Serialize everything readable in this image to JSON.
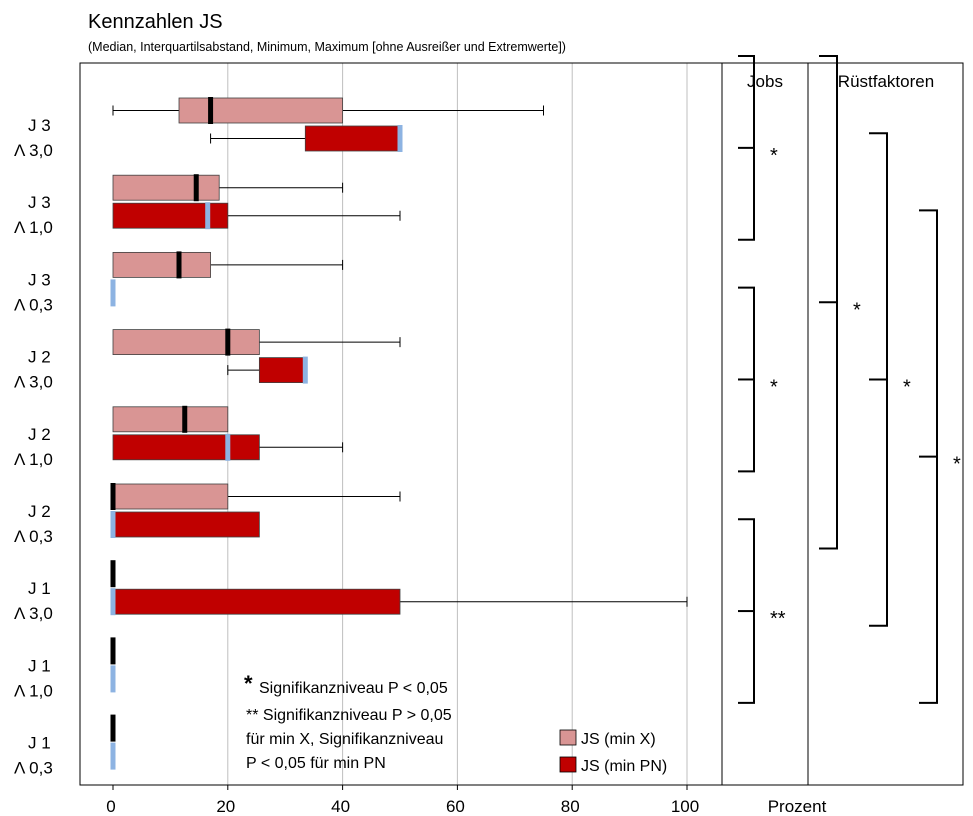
{
  "chart_data": {
    "type": "boxplot",
    "title": "Kennzahlen JS",
    "subtitle": "(Median, Interquartilsabstand, Minimum, Maximum [ohne Ausreißer und Extremwerte])",
    "xlabel": "Prozent",
    "xlim": [
      0,
      105
    ],
    "xticks": [
      0,
      20,
      40,
      60,
      80,
      100
    ],
    "grid": true,
    "colors": {
      "min_x": "#d99594",
      "min_pn": "#c00000",
      "median_min_pn": "#8db3e2",
      "median_min_x": "#000000"
    },
    "legend": {
      "position": "bottom-right",
      "entries": [
        {
          "series": "min_x",
          "label": "JS (min X)"
        },
        {
          "series": "min_pn",
          "label": "JS (min PN)"
        }
      ]
    },
    "notes": {
      "star": "*",
      "line1": "Signifikanzniveau P < 0,05",
      "line2": "** Signifikanzniveau P > 0,05",
      "line3": "für min X, Signifikanzniveau",
      "line4": "P < 0,05 für min PN"
    },
    "groups": [
      {
        "label1": "J 3",
        "label2": "Λ 3,0",
        "min_x": {
          "min": 0,
          "q1": 11.5,
          "median": 17,
          "q3": 40,
          "max": 75
        },
        "min_pn": {
          "min": 17,
          "q1": 33.5,
          "median": 50,
          "q3": 50,
          "max": 50
        }
      },
      {
        "label1": "J 3",
        "label2": "Λ 1,0",
        "min_x": {
          "min": 0,
          "q1": 0,
          "median": 14.5,
          "q3": 18.5,
          "max": 40
        },
        "min_pn": {
          "min": 0,
          "q1": 0,
          "median": 16.5,
          "q3": 20,
          "max": 50
        }
      },
      {
        "label1": "J 3",
        "label2": "Λ 0,3",
        "min_x": {
          "min": 0,
          "q1": 0,
          "median": 11.5,
          "q3": 17,
          "max": 40
        },
        "min_pn": {
          "min": 0,
          "q1": 0,
          "median": 0,
          "q3": 0,
          "max": 0
        }
      },
      {
        "label1": "J 2",
        "label2": "Λ 3,0",
        "min_x": {
          "min": 0,
          "q1": 0,
          "median": 20,
          "q3": 25.5,
          "max": 50
        },
        "min_pn": {
          "min": 20,
          "q1": 25.5,
          "median": 33.5,
          "q3": 33.5,
          "max": 33.5
        }
      },
      {
        "label1": "J 2",
        "label2": "Λ 1,0",
        "min_x": {
          "min": 0,
          "q1": 0,
          "median": 12.5,
          "q3": 20,
          "max": 20
        },
        "min_pn": {
          "min": 0,
          "q1": 0,
          "median": 20,
          "q3": 25.5,
          "max": 40
        }
      },
      {
        "label1": "J 2",
        "label2": "Λ 0,3",
        "min_x": {
          "min": 0,
          "q1": 0,
          "median": 0,
          "q3": 20,
          "max": 50
        },
        "min_pn": {
          "min": 0,
          "q1": 0,
          "median": 0,
          "q3": 25.5,
          "max": 25.5
        }
      },
      {
        "label1": "J 1",
        "label2": "Λ 3,0",
        "min_x": {
          "min": 0,
          "q1": 0,
          "median": 0,
          "q3": 0,
          "max": 0
        },
        "min_pn": {
          "min": 0,
          "q1": 0,
          "median": 0,
          "q3": 50,
          "max": 100
        }
      },
      {
        "label1": "J 1",
        "label2": "Λ 1,0",
        "min_x": {
          "min": 0,
          "q1": 0,
          "median": 0,
          "q3": 0,
          "max": 0
        },
        "min_pn": {
          "min": 0,
          "q1": 0,
          "median": 0,
          "q3": 0,
          "max": 0
        }
      },
      {
        "label1": "J 1",
        "label2": "Λ 0,3",
        "min_x": {
          "min": 0,
          "q1": 0,
          "median": 0,
          "q3": 0,
          "max": 0
        },
        "min_pn": {
          "min": 0,
          "q1": 0,
          "median": 0,
          "q3": 0,
          "max": 0
        }
      }
    ],
    "significance_panels": [
      {
        "header": "Jobs",
        "brackets": [
          {
            "from_group": 0,
            "to_group": 2,
            "mark": "*"
          },
          {
            "from_group": 3,
            "to_group": 5,
            "mark": "*"
          },
          {
            "from_group": 6,
            "to_group": 8,
            "mark": "**"
          }
        ]
      },
      {
        "header": "Rüstfaktoren",
        "brackets": [
          {
            "from_group": 0,
            "to_group": 6,
            "mark": "*"
          },
          {
            "from_group": 1,
            "to_group": 7,
            "mark": "*"
          },
          {
            "from_group": 2,
            "to_group": 8,
            "mark": "*"
          }
        ]
      }
    ]
  }
}
